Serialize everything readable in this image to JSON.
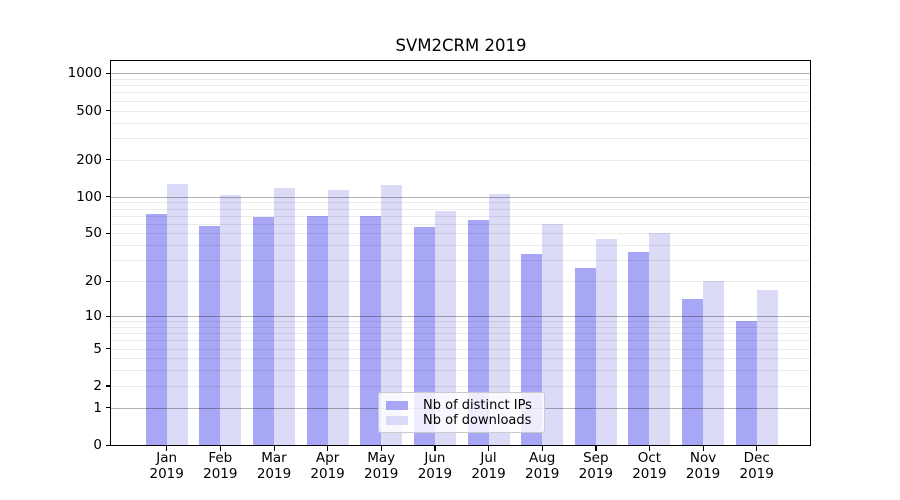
{
  "title": "SVM2CRM 2019",
  "chart_data": {
    "type": "bar",
    "title": "SVM2CRM 2019",
    "categories": [
      "Jan",
      "Feb",
      "Mar",
      "Apr",
      "May",
      "Jun",
      "Jul",
      "Aug",
      "Sep",
      "Oct",
      "Nov",
      "Dec"
    ],
    "year_label": "2019",
    "series": [
      {
        "name": "Nb of distinct IPs",
        "color": "#a7a7f5",
        "values": [
          72,
          58,
          68,
          70,
          69,
          56,
          65,
          34,
          26,
          35,
          14,
          9
        ]
      },
      {
        "name": "Nb of downloads",
        "color": "#dbdbf8",
        "values": [
          126,
          104,
          117,
          113,
          125,
          76,
          106,
          60,
          45,
          50,
          20,
          17
        ]
      }
    ],
    "yscale": "log1p",
    "yticks": [
      0,
      1,
      2,
      5,
      10,
      20,
      50,
      100,
      200,
      500,
      1000
    ],
    "ylim": [
      0,
      1250
    ],
    "grid": "horizontal",
    "legend_position": "bottom-center-inside"
  },
  "colors": {
    "bar_distinct_ips": "#a7a7f5",
    "bar_downloads": "#dbdbf8",
    "grid_major": "rgba(0,0,0,0.30)",
    "grid_minor": "rgba(0,0,0,0.08)",
    "spine": "#000000",
    "background": "#ffffff",
    "legend_border": "#cbcbcb"
  },
  "legend": {
    "items": [
      {
        "label": "Nb of distinct IPs"
      },
      {
        "label": "Nb of downloads"
      }
    ]
  }
}
